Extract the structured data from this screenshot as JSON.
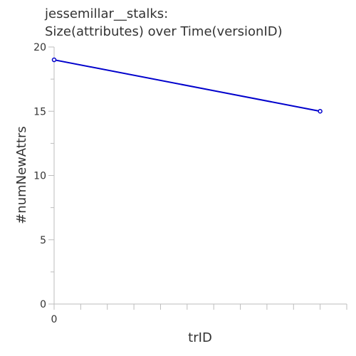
{
  "chart_data": {
    "type": "line",
    "title_lines": [
      "jessemillar__stalks:",
      "Size(attributes) over Time(versionID)"
    ],
    "xlabel": "trID",
    "ylabel": "#numNewAttrs",
    "x_tick_labels": [
      "0"
    ],
    "y_ticks": [
      0,
      5,
      10,
      15,
      20
    ],
    "ylim": [
      0,
      20
    ],
    "xlim": [
      0,
      11
    ],
    "series": [
      {
        "x": [
          0,
          10
        ],
        "y": [
          19,
          15
        ],
        "color": "#0000cc"
      }
    ],
    "grid": false
  }
}
